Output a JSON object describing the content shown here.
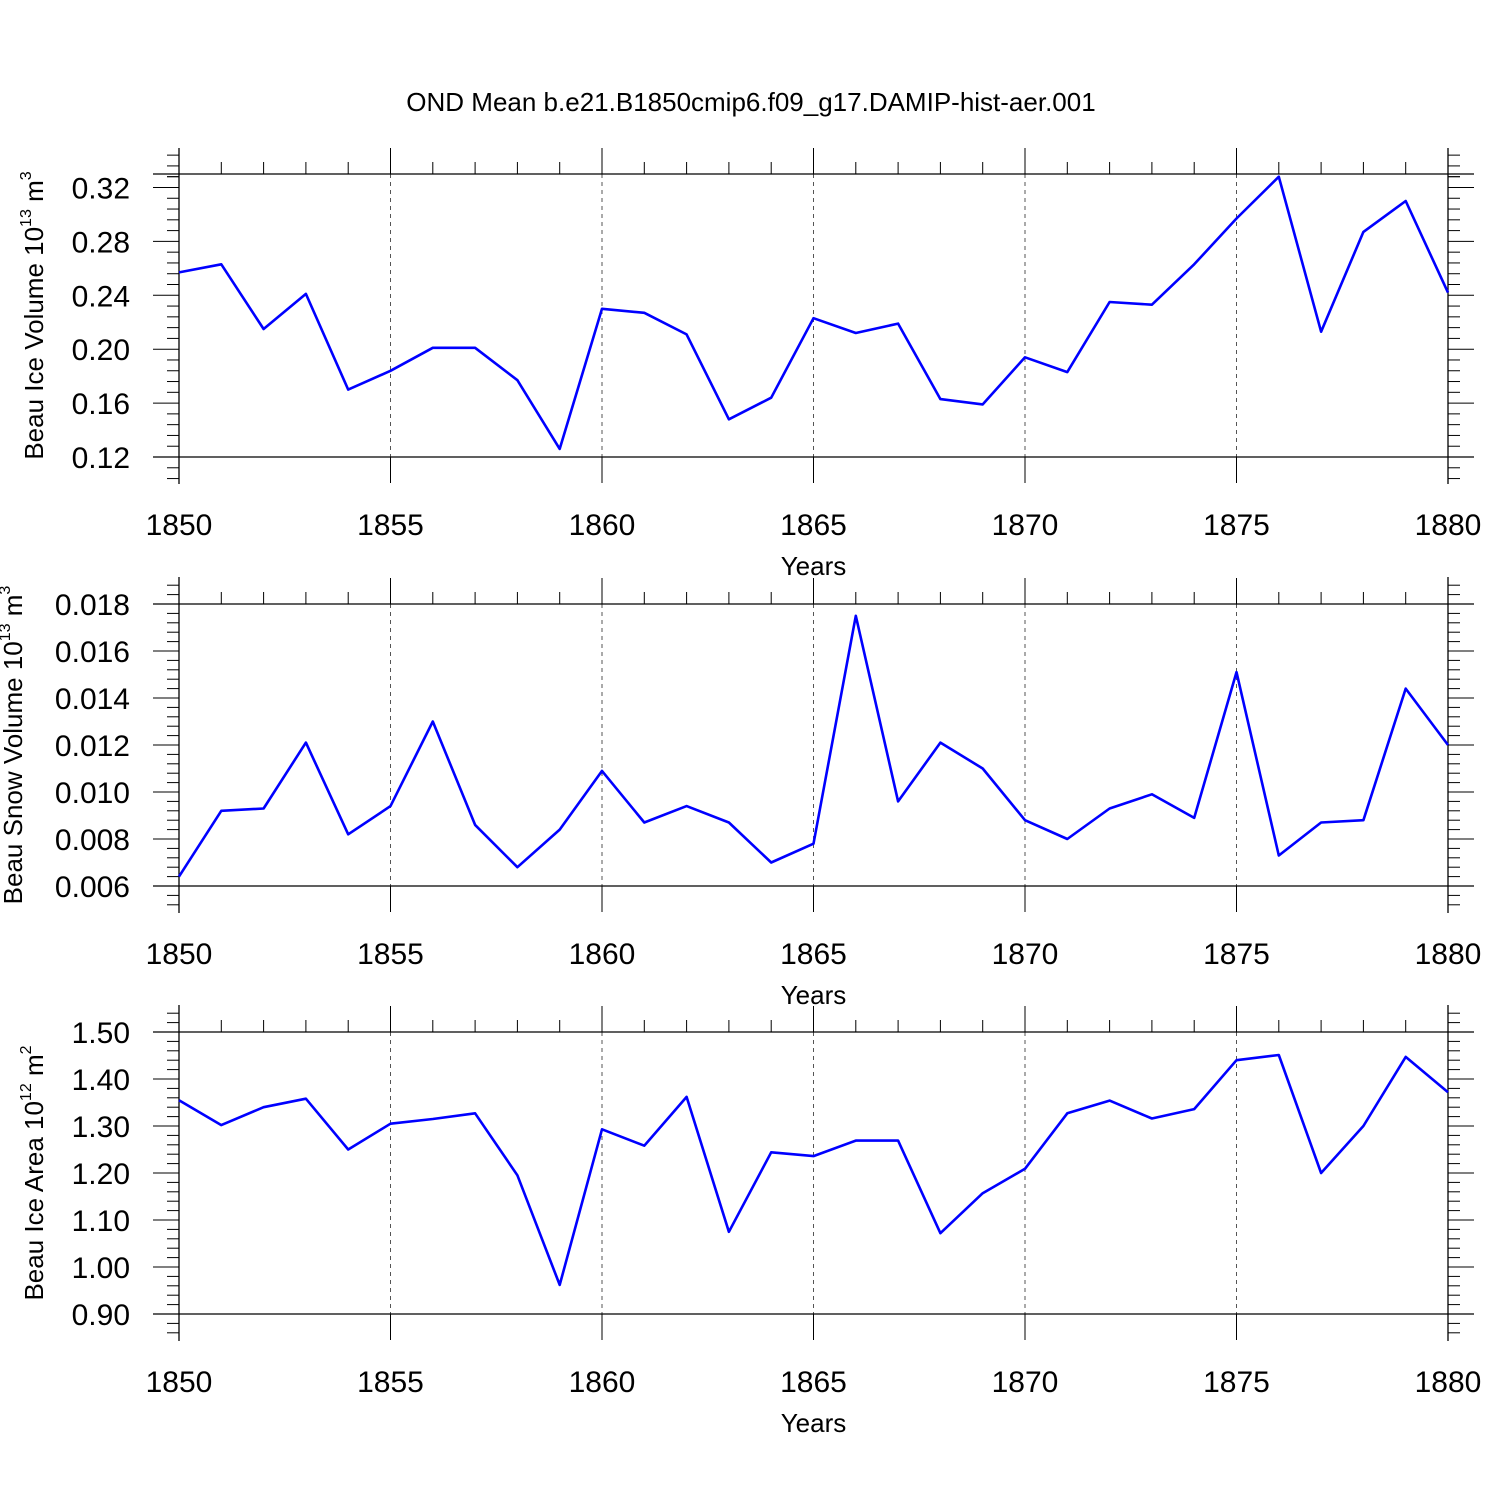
{
  "title": "OND Mean b.e21.B1850cmip6.f09_g17.DAMIP-hist-aer.001",
  "line_color": "#0000ff",
  "chart_data": [
    {
      "type": "line",
      "title": "OND Mean b.e21.B1850cmip6.f09_g17.DAMIP-hist-aer.001",
      "xlabel": "Years",
      "ylabel_main": "Beau Ice Volume 10",
      "ylabel_exp": "13",
      "ylabel_unit": "m",
      "ylabel_unit_exp": "3",
      "xlim": [
        1850,
        1880
      ],
      "ylim": [
        0.12,
        0.33
      ],
      "x_ticks": [
        "1850",
        "1855",
        "1860",
        "1865",
        "1870",
        "1875",
        "1880"
      ],
      "y_ticks": [
        "0.12",
        "0.16",
        "0.20",
        "0.24",
        "0.28",
        "0.32"
      ],
      "grid": "dashed vertical at major x ticks",
      "x": [
        1850,
        1851,
        1852,
        1853,
        1854,
        1855,
        1856,
        1857,
        1858,
        1859,
        1860,
        1861,
        1862,
        1863,
        1864,
        1865,
        1866,
        1867,
        1868,
        1869,
        1870,
        1871,
        1872,
        1873,
        1874,
        1875,
        1876,
        1877,
        1878,
        1879,
        1880
      ],
      "y": [
        0.257,
        0.263,
        0.215,
        0.241,
        0.17,
        0.184,
        0.201,
        0.201,
        0.177,
        0.126,
        0.23,
        0.227,
        0.211,
        0.148,
        0.164,
        0.223,
        0.212,
        0.219,
        0.163,
        0.159,
        0.194,
        0.183,
        0.235,
        0.233,
        0.263,
        0.297,
        0.328,
        0.213,
        0.287,
        0.31,
        0.242
      ]
    },
    {
      "type": "line",
      "title": "",
      "xlabel": "Years",
      "ylabel_main": "Beau Snow Volume 10",
      "ylabel_exp": "13",
      "ylabel_unit": "m",
      "ylabel_unit_exp": "3",
      "xlim": [
        1850,
        1880
      ],
      "ylim": [
        0.006,
        0.018
      ],
      "x_ticks": [
        "1850",
        "1855",
        "1860",
        "1865",
        "1870",
        "1875",
        "1880"
      ],
      "y_ticks": [
        "0.006",
        "0.008",
        "0.010",
        "0.012",
        "0.014",
        "0.016",
        "0.018"
      ],
      "grid": "dashed vertical at major x ticks",
      "x": [
        1850,
        1851,
        1852,
        1853,
        1854,
        1855,
        1856,
        1857,
        1858,
        1859,
        1860,
        1861,
        1862,
        1863,
        1864,
        1865,
        1866,
        1867,
        1868,
        1869,
        1870,
        1871,
        1872,
        1873,
        1874,
        1875,
        1876,
        1877,
        1878,
        1879,
        1880
      ],
      "y": [
        0.0064,
        0.0092,
        0.0093,
        0.0121,
        0.0082,
        0.0094,
        0.013,
        0.0086,
        0.0068,
        0.0084,
        0.0109,
        0.0087,
        0.0094,
        0.0087,
        0.007,
        0.0078,
        0.0175,
        0.0096,
        0.0121,
        0.011,
        0.0088,
        0.008,
        0.0093,
        0.0099,
        0.0089,
        0.0151,
        0.0073,
        0.0087,
        0.0088,
        0.0144,
        0.012
      ]
    },
    {
      "type": "line",
      "title": "",
      "xlabel": "Years",
      "ylabel_main": "Beau Ice Area 10",
      "ylabel_exp": "12",
      "ylabel_unit": "m",
      "ylabel_unit_exp": "2",
      "xlim": [
        1850,
        1880
      ],
      "ylim": [
        0.9,
        1.5
      ],
      "x_ticks": [
        "1850",
        "1855",
        "1860",
        "1865",
        "1870",
        "1875",
        "1880"
      ],
      "y_ticks": [
        "0.90",
        "1.00",
        "1.10",
        "1.20",
        "1.30",
        "1.40",
        "1.50"
      ],
      "grid": "dashed vertical at major x ticks",
      "x": [
        1850,
        1851,
        1852,
        1853,
        1854,
        1855,
        1856,
        1857,
        1858,
        1859,
        1860,
        1861,
        1862,
        1863,
        1864,
        1865,
        1866,
        1867,
        1868,
        1869,
        1870,
        1871,
        1872,
        1873,
        1874,
        1875,
        1876,
        1877,
        1878,
        1879,
        1880
      ],
      "y": [
        1.355,
        1.302,
        1.34,
        1.358,
        1.25,
        1.305,
        1.315,
        1.327,
        1.195,
        0.962,
        1.293,
        1.258,
        1.362,
        1.075,
        1.244,
        1.236,
        1.269,
        1.269,
        1.072,
        1.157,
        1.209,
        1.327,
        1.354,
        1.316,
        1.336,
        1.44,
        1.451,
        1.2,
        1.3,
        1.447,
        1.372
      ]
    }
  ]
}
